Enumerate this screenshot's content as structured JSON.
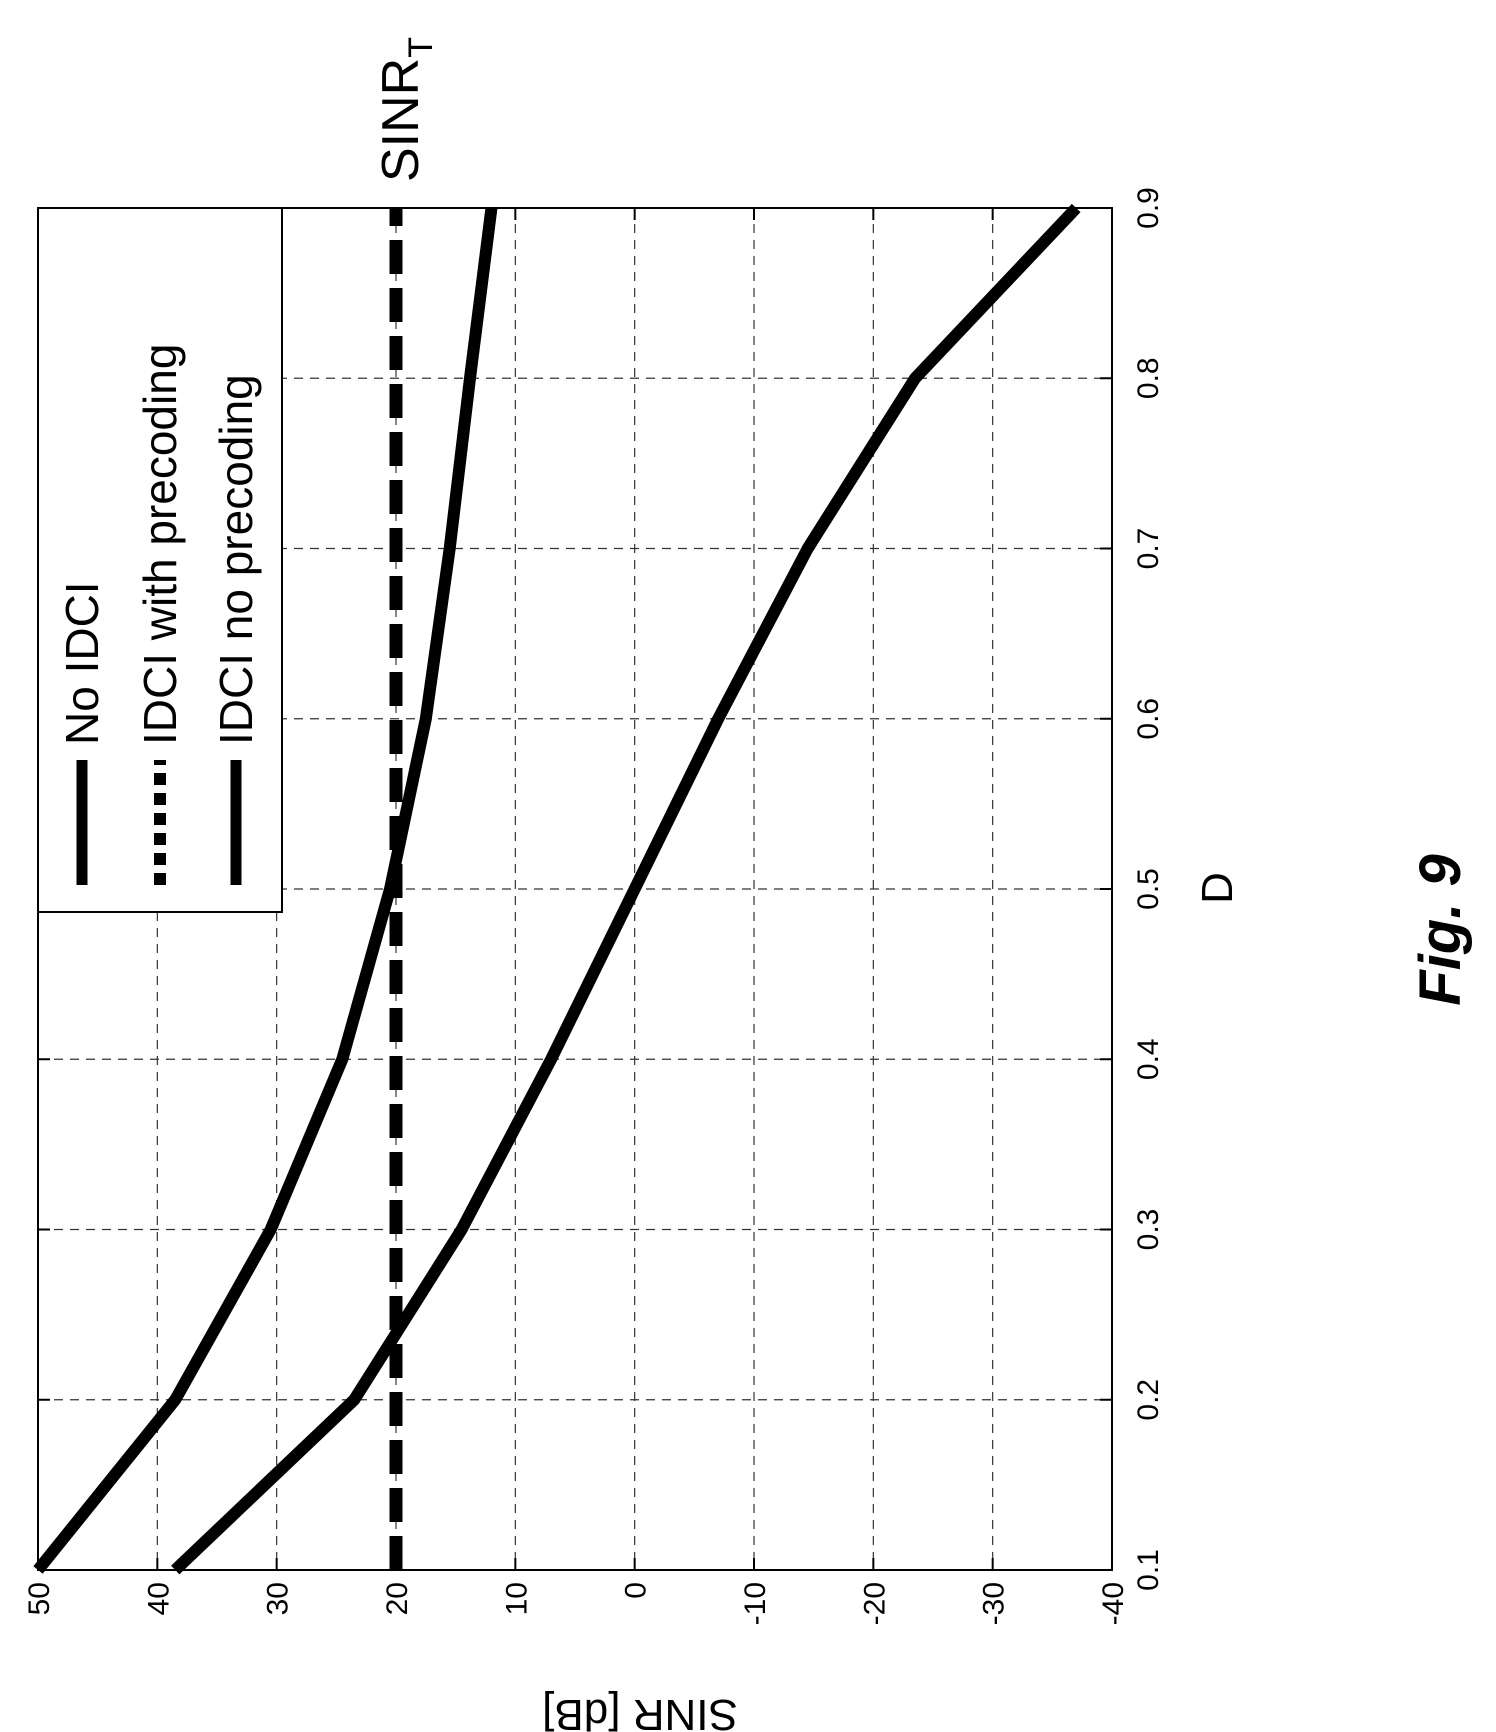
{
  "chart_data": {
    "type": "line",
    "orientation": "rotated-90-ccw",
    "xlabel": "D",
    "ylabel": "SINR [dB]",
    "xlim": [
      0.1,
      0.9
    ],
    "ylim": [
      -40,
      50
    ],
    "x_ticks": [
      "0.1",
      "0.2",
      "0.3",
      "0.4",
      "0.5",
      "0.6",
      "0.7",
      "0.8",
      "0.9"
    ],
    "y_ticks": [
      "-40",
      "-30",
      "-20",
      "-10",
      "0",
      "10",
      "20",
      "30",
      "40",
      "50"
    ],
    "grid": true,
    "legend_position": "top-left",
    "series": [
      {
        "name": "No IDCI",
        "style": "solid",
        "x": [
          0.1,
          0.2,
          0.3,
          0.4,
          0.5,
          0.6,
          0.7,
          0.8,
          0.9
        ],
        "y": [
          50,
          38.5,
          30.5,
          24.5,
          20.5,
          17.5,
          15.5,
          13.8,
          12
        ]
      },
      {
        "name": "IDCI with precoding",
        "style": "dashed",
        "x": [
          0.1,
          0.9
        ],
        "y": [
          20,
          20
        ]
      },
      {
        "name": "IDCI no precoding",
        "style": "solid",
        "x": [
          0.1,
          0.2,
          0.3,
          0.4,
          0.5,
          0.6,
          0.7,
          0.8,
          0.9
        ],
        "y": [
          38.5,
          23.5,
          14.5,
          7,
          0,
          -7,
          -14.5,
          -23.5,
          -37
        ]
      }
    ],
    "annotations": [
      {
        "text": "SINR",
        "subscript": "T"
      }
    ]
  },
  "caption": "Fig. 9",
  "colors": {
    "line": "#000000",
    "grid": "#333333",
    "background": "#ffffff"
  }
}
